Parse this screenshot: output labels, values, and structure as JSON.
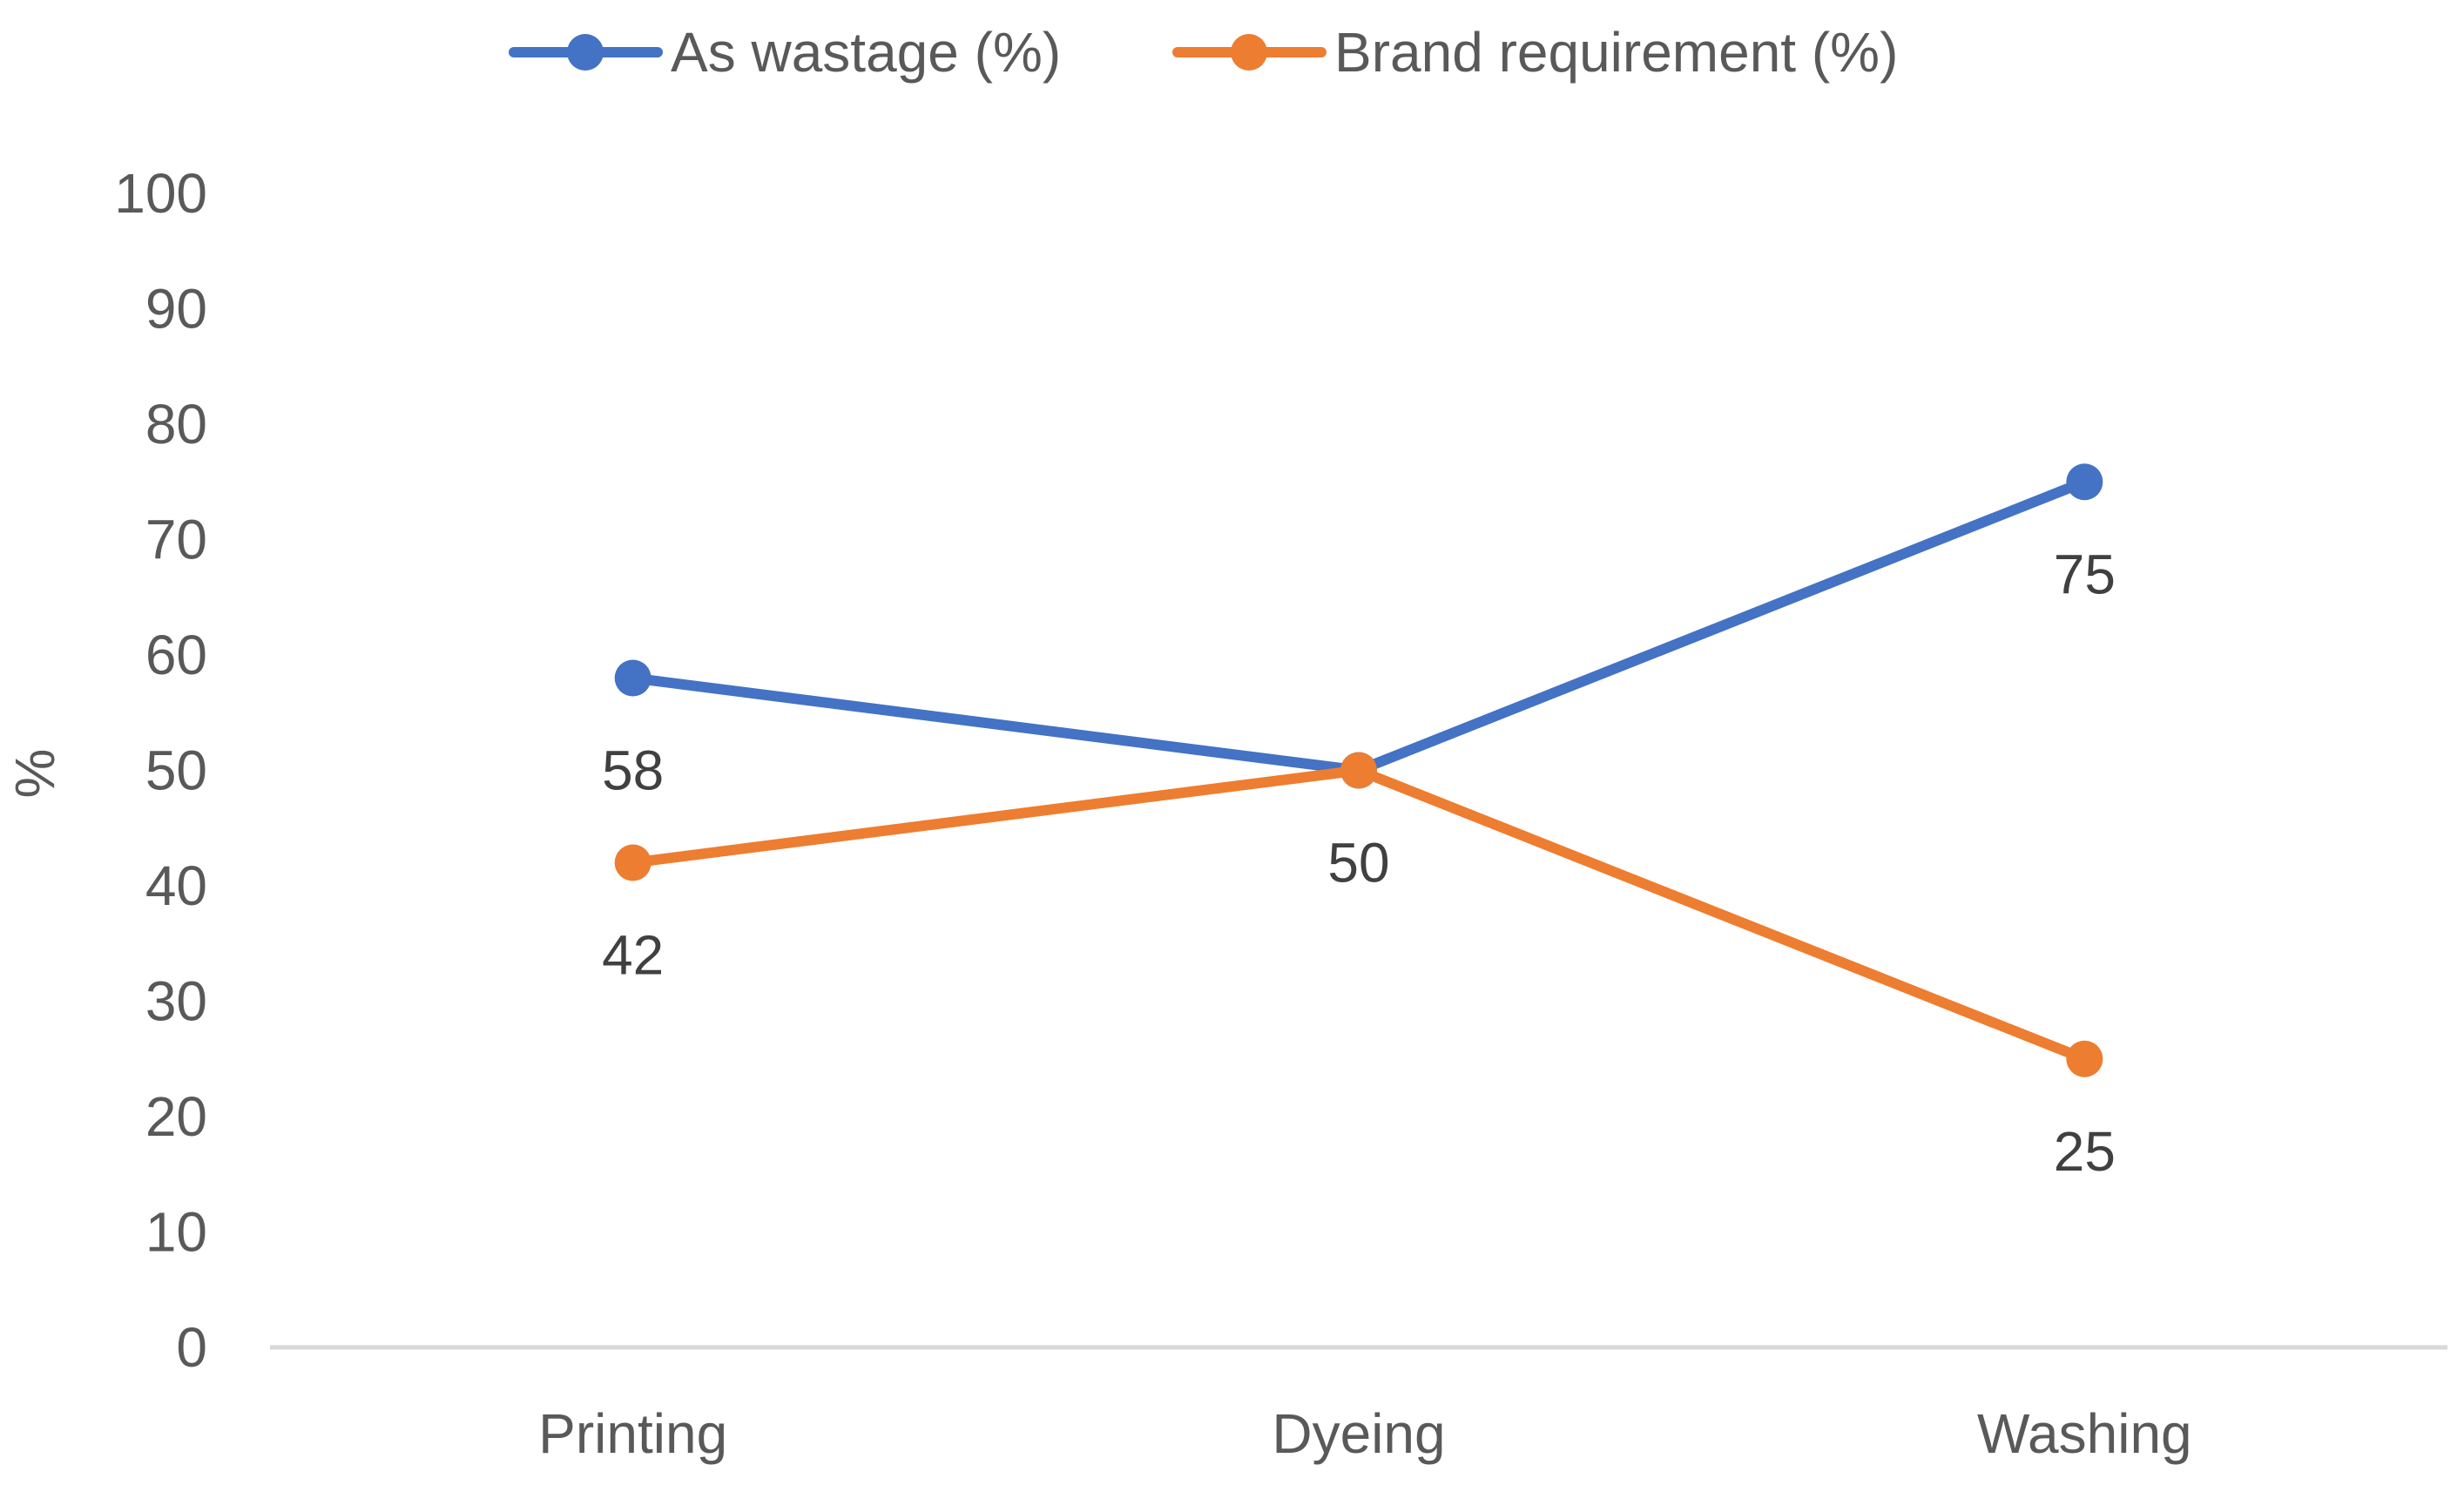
{
  "chart_data": {
    "type": "line",
    "title": "",
    "xlabel": "",
    "ylabel": "%",
    "categories": [
      "Printing",
      "Dyeing",
      "Washing"
    ],
    "series": [
      {
        "name": "As wastage (%)",
        "color": "#4472C4",
        "values": [
          58,
          50,
          75
        ],
        "label_text": [
          "58",
          "50",
          "75"
        ]
      },
      {
        "name": "Brand requirement (%)",
        "color": "#ED7D31",
        "values": [
          42,
          50,
          25
        ],
        "label_text": [
          "42",
          "",
          "25"
        ]
      }
    ],
    "ylim": [
      0,
      100
    ],
    "yticks": [
      0,
      10,
      20,
      30,
      40,
      50,
      60,
      70,
      80,
      90,
      100
    ],
    "ytick_labels": [
      "0",
      "10",
      "20",
      "30",
      "40",
      "50",
      "60",
      "70",
      "80",
      "90",
      "100"
    ],
    "grid": false,
    "legend_position": "top-center",
    "axis_color": "#D9D9D9"
  }
}
